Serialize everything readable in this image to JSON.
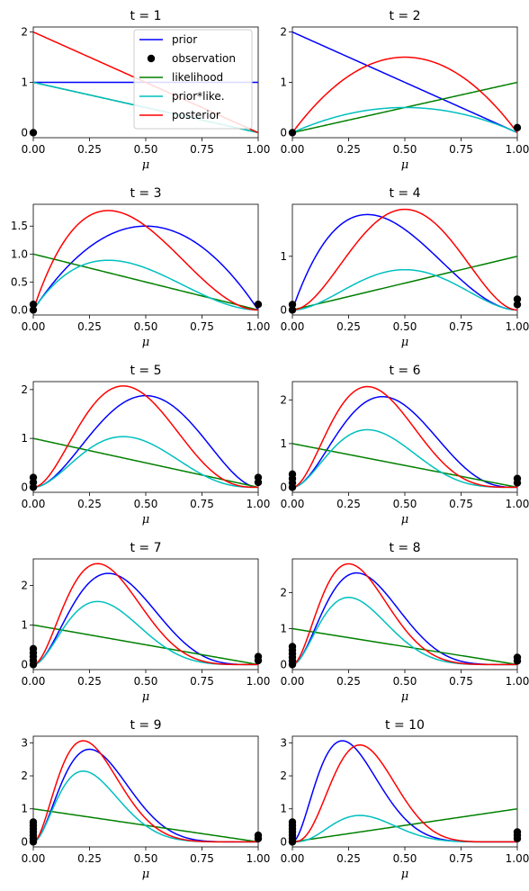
{
  "colors": {
    "prior": "#0000ff",
    "observation": "#000000",
    "likelihood": "#008000",
    "prior_like": "#00bfbf",
    "posterior": "#ff0000"
  },
  "legend": {
    "placement": "top-right of panel t = 1",
    "entries": [
      {
        "key": "prior",
        "label": "prior",
        "kind": "line"
      },
      {
        "key": "observation",
        "label": "observation",
        "kind": "marker"
      },
      {
        "key": "likelihood",
        "label": "likelihood",
        "kind": "line"
      },
      {
        "key": "prior_like",
        "label": "prior*like.",
        "kind": "line"
      },
      {
        "key": "posterior",
        "label": "posterior",
        "kind": "line"
      }
    ]
  },
  "chart_data": [
    {
      "type": "line",
      "title": "t = 1",
      "xlabel": "μ",
      "xlim": [
        0,
        1
      ],
      "ylim": [
        -0.1,
        2.1
      ],
      "yticks": [
        "0",
        "1",
        "2"
      ],
      "xticks": [
        "0.00",
        "0.25",
        "0.50",
        "0.75",
        "1.00"
      ],
      "prior": {
        "a": 1,
        "b": 1
      },
      "observation_x": 0,
      "observations_at_0": 1,
      "observations_at_1": 0,
      "series": [
        {
          "name": "prior"
        },
        {
          "name": "observation"
        },
        {
          "name": "likelihood"
        },
        {
          "name": "prior*like."
        },
        {
          "name": "posterior"
        }
      ]
    },
    {
      "type": "line",
      "title": "t = 2",
      "xlabel": "μ",
      "xlim": [
        0,
        1
      ],
      "ylim": [
        -0.1,
        2.1
      ],
      "yticks": [
        "0",
        "1",
        "2"
      ],
      "xticks": [
        "0.00",
        "0.25",
        "0.50",
        "0.75",
        "1.00"
      ],
      "prior": {
        "a": 1,
        "b": 2
      },
      "observation_x": 1,
      "observations_at_0": 1,
      "observations_at_1": 1
    },
    {
      "type": "line",
      "title": "t = 3",
      "xlabel": "μ",
      "xlim": [
        0,
        1
      ],
      "ylim": [
        -0.09,
        1.89
      ],
      "yticks": [
        "0.0",
        "0.5",
        "1.0",
        "1.5"
      ],
      "xticks": [
        "0.00",
        "0.25",
        "0.50",
        "0.75",
        "1.00"
      ],
      "prior": {
        "a": 2,
        "b": 2
      },
      "observation_x": 0,
      "observations_at_0": 2,
      "observations_at_1": 1
    },
    {
      "type": "line",
      "title": "t = 4",
      "xlabel": "μ",
      "xlim": [
        0,
        1
      ],
      "ylim": [
        -0.094,
        1.969
      ],
      "yticks": [
        "0",
        "1"
      ],
      "xticks": [
        "0.00",
        "0.25",
        "0.50",
        "0.75",
        "1.00"
      ],
      "prior": {
        "a": 2,
        "b": 3
      },
      "observation_x": 1,
      "observations_at_0": 2,
      "observations_at_1": 2
    },
    {
      "type": "line",
      "title": "t = 5",
      "xlabel": "μ",
      "xlim": [
        0,
        1
      ],
      "ylim": [
        -0.103,
        2.163
      ],
      "yticks": [
        "0",
        "1",
        "2"
      ],
      "xticks": [
        "0.00",
        "0.25",
        "0.50",
        "0.75",
        "1.00"
      ],
      "prior": {
        "a": 3,
        "b": 3
      },
      "observation_x": 0,
      "observations_at_0": 3,
      "observations_at_1": 2
    },
    {
      "type": "line",
      "title": "t = 6",
      "xlabel": "μ",
      "xlim": [
        0,
        1
      ],
      "ylim": [
        -0.115,
        2.419
      ],
      "yticks": [
        "0",
        "1",
        "2"
      ],
      "xticks": [
        "0.00",
        "0.25",
        "0.50",
        "0.75",
        "1.00"
      ],
      "prior": {
        "a": 3,
        "b": 4
      },
      "observation_x": 0,
      "observations_at_0": 4,
      "observations_at_1": 2
    },
    {
      "type": "line",
      "title": "t = 7",
      "xlabel": "μ",
      "xlim": [
        0,
        1
      ],
      "ylim": [
        -0.127,
        2.67
      ],
      "yticks": [
        "0",
        "1",
        "2"
      ],
      "xticks": [
        "0.00",
        "0.25",
        "0.50",
        "0.75",
        "1.00"
      ],
      "prior": {
        "a": 3,
        "b": 5
      },
      "observation_x": 0,
      "observations_at_0": 5,
      "observations_at_1": 2
    },
    {
      "type": "line",
      "title": "t = 8",
      "xlabel": "μ",
      "xlim": [
        0,
        1
      ],
      "ylim": [
        -0.14,
        2.94
      ],
      "yticks": [
        "0",
        "1",
        "2"
      ],
      "xticks": [
        "0.00",
        "0.25",
        "0.50",
        "0.75",
        "1.00"
      ],
      "prior": {
        "a": 3,
        "b": 6
      },
      "observation_x": 0,
      "observations_at_0": 6,
      "observations_at_1": 2
    },
    {
      "type": "line",
      "title": "t = 9",
      "xlabel": "μ",
      "xlim": [
        0,
        1
      ],
      "ylim": [
        -0.152,
        3.2
      ],
      "yticks": [
        "0",
        "1",
        "2",
        "3"
      ],
      "xticks": [
        "0.00",
        "0.25",
        "0.50",
        "0.75",
        "1.00"
      ],
      "prior": {
        "a": 3,
        "b": 7
      },
      "observation_x": 0,
      "observations_at_0": 7,
      "observations_at_1": 2
    },
    {
      "type": "line",
      "title": "t = 10",
      "xlabel": "μ",
      "xlim": [
        0,
        1
      ],
      "ylim": [
        -0.152,
        3.2
      ],
      "yticks": [
        "0",
        "1",
        "2",
        "3"
      ],
      "xticks": [
        "0.00",
        "0.25",
        "0.50",
        "0.75",
        "1.00"
      ],
      "prior": {
        "a": 3,
        "b": 8
      },
      "observation_x": 1,
      "observations_at_0": 7,
      "observations_at_1": 3
    }
  ]
}
